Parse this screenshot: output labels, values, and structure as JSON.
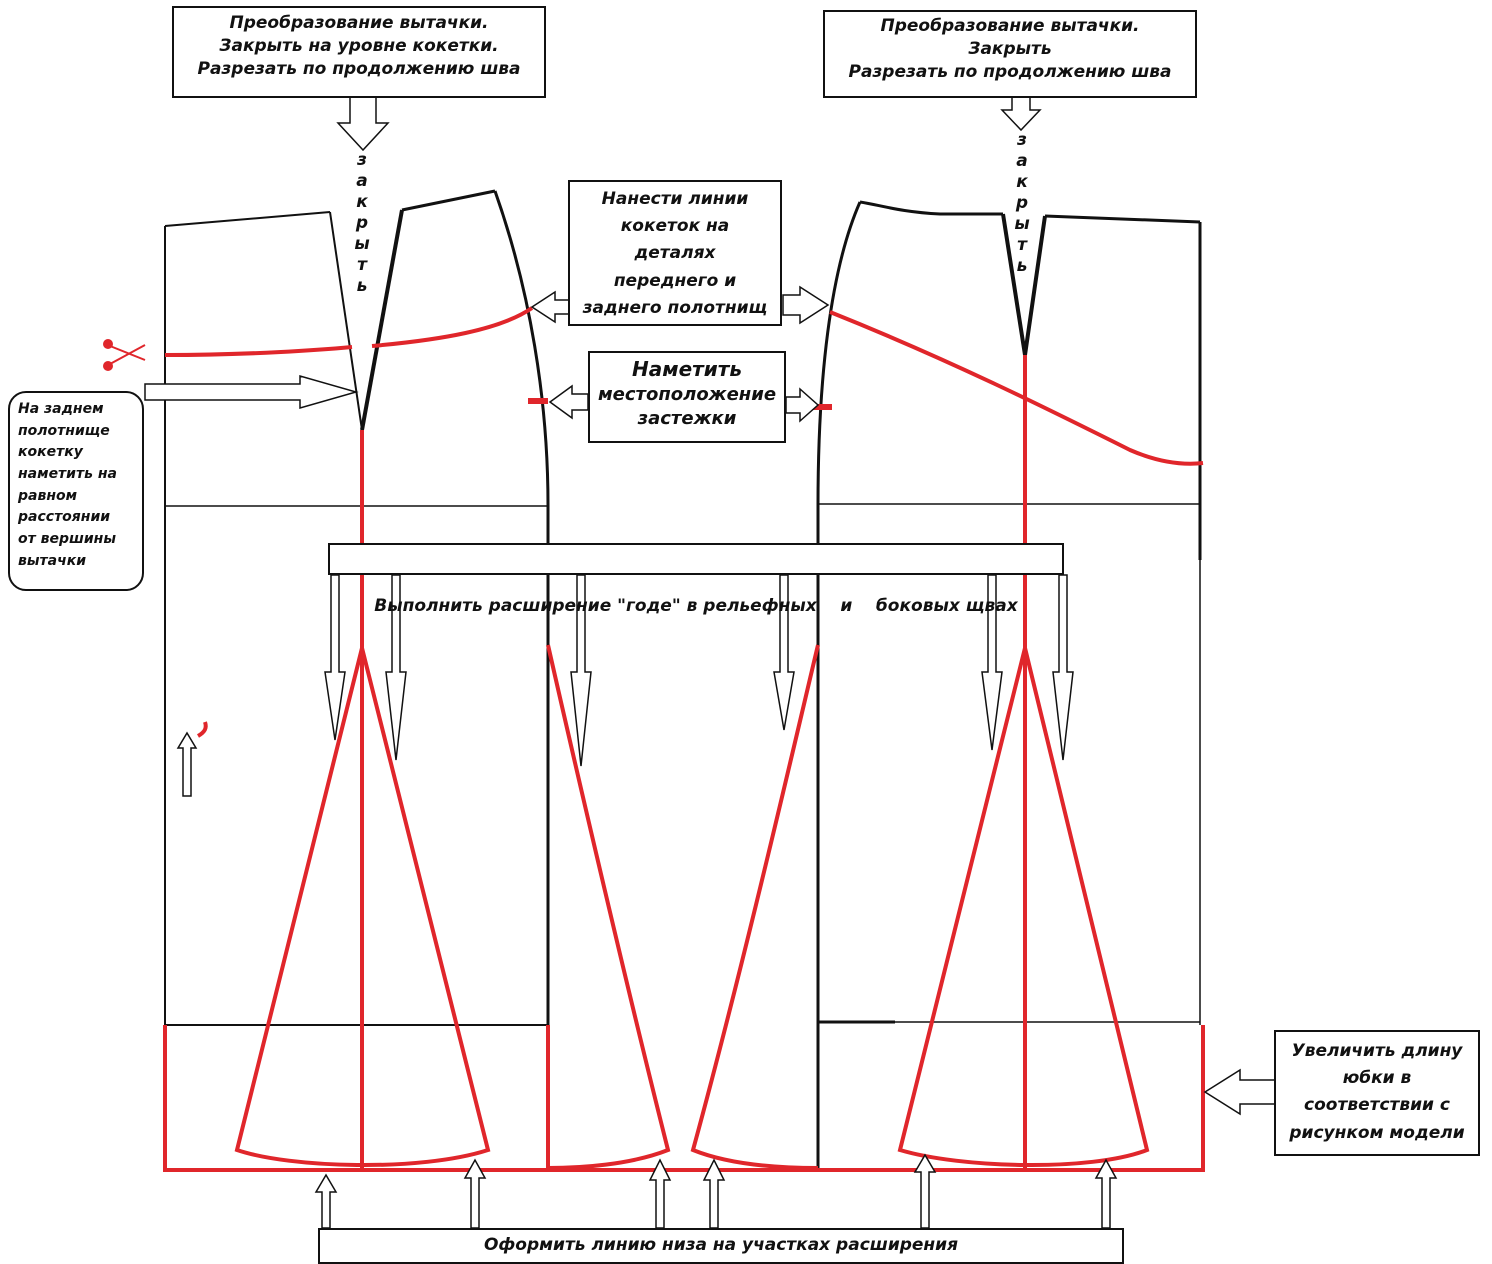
{
  "notes": {
    "left_dart": [
      "Преобразование вытачки.",
      "Закрыть на уровне кокетки.",
      "Разрезать по продолжению шва"
    ],
    "right_dart": [
      "Преобразование вытачки.",
      "Закрыть",
      "Разрезать по продолжению шва"
    ],
    "yokes": [
      "Нанести линии",
      "кокеток на",
      "деталях",
      "переднего и",
      "заднего полотнищ"
    ],
    "zipper": [
      "Наметить",
      "местоположение",
      "застежки"
    ],
    "back_yoke": [
      "На заднем",
      "полотнище",
      "кокетку",
      "наметить на",
      "равном",
      "расстоянии",
      "от вершины",
      "вытачки"
    ],
    "godet": "Выполнить расширение \"годе\" в рельефных    и    боковых щвах",
    "length": [
      "Увеличить длину",
      "юбки в",
      "соответствии с",
      "рисунком модели"
    ],
    "hem": "Оформить линию низа на участках расширения"
  },
  "dart_label_left": [
    "з",
    "а",
    "к",
    "р",
    "ы",
    "т",
    "ь"
  ],
  "dart_label_right": [
    "з",
    "а",
    "к",
    "р",
    "ы",
    "т",
    "ь"
  ],
  "colors": {
    "outline": "#111111",
    "construction": "#e0262b"
  }
}
